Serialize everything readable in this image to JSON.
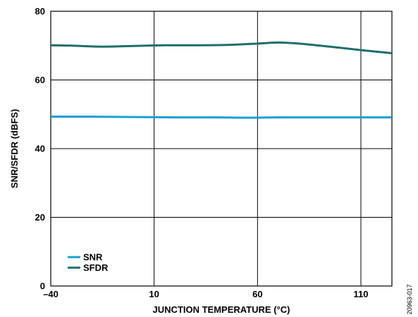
{
  "chart_data": {
    "type": "line",
    "xlabel": "JUNCTION TEMPERATURE (°C)",
    "ylabel": "SNR/SFDR (dBFS)",
    "xlim": [
      -40,
      125
    ],
    "ylim": [
      0,
      80
    ],
    "xticks": [
      -40,
      10,
      60,
      110
    ],
    "xtick_labels": [
      "–40",
      "10",
      "60",
      "110"
    ],
    "yticks": [
      0,
      20,
      40,
      60,
      80
    ],
    "ytick_labels": [
      "0",
      "20",
      "40",
      "60",
      "80"
    ],
    "grid": true,
    "legend_position": "bottom-left",
    "series": [
      {
        "name": "SNR",
        "color": "#1a9fd4",
        "x": [
          -40,
          -20,
          0,
          20,
          40,
          55,
          70,
          90,
          110,
          125
        ],
        "y": [
          49.3,
          49.3,
          49.2,
          49.1,
          49.1,
          49.0,
          49.1,
          49.1,
          49.1,
          49.1
        ]
      },
      {
        "name": "SFDR",
        "color": "#1f6e6a",
        "x": [
          -40,
          -30,
          -15,
          0,
          15,
          30,
          45,
          60,
          70,
          80,
          95,
          110,
          125
        ],
        "y": [
          70.1,
          70.0,
          69.7,
          69.9,
          70.1,
          70.1,
          70.2,
          70.6,
          70.9,
          70.6,
          69.7,
          68.7,
          67.8
        ]
      }
    ]
  },
  "figure_id": "20963-017"
}
